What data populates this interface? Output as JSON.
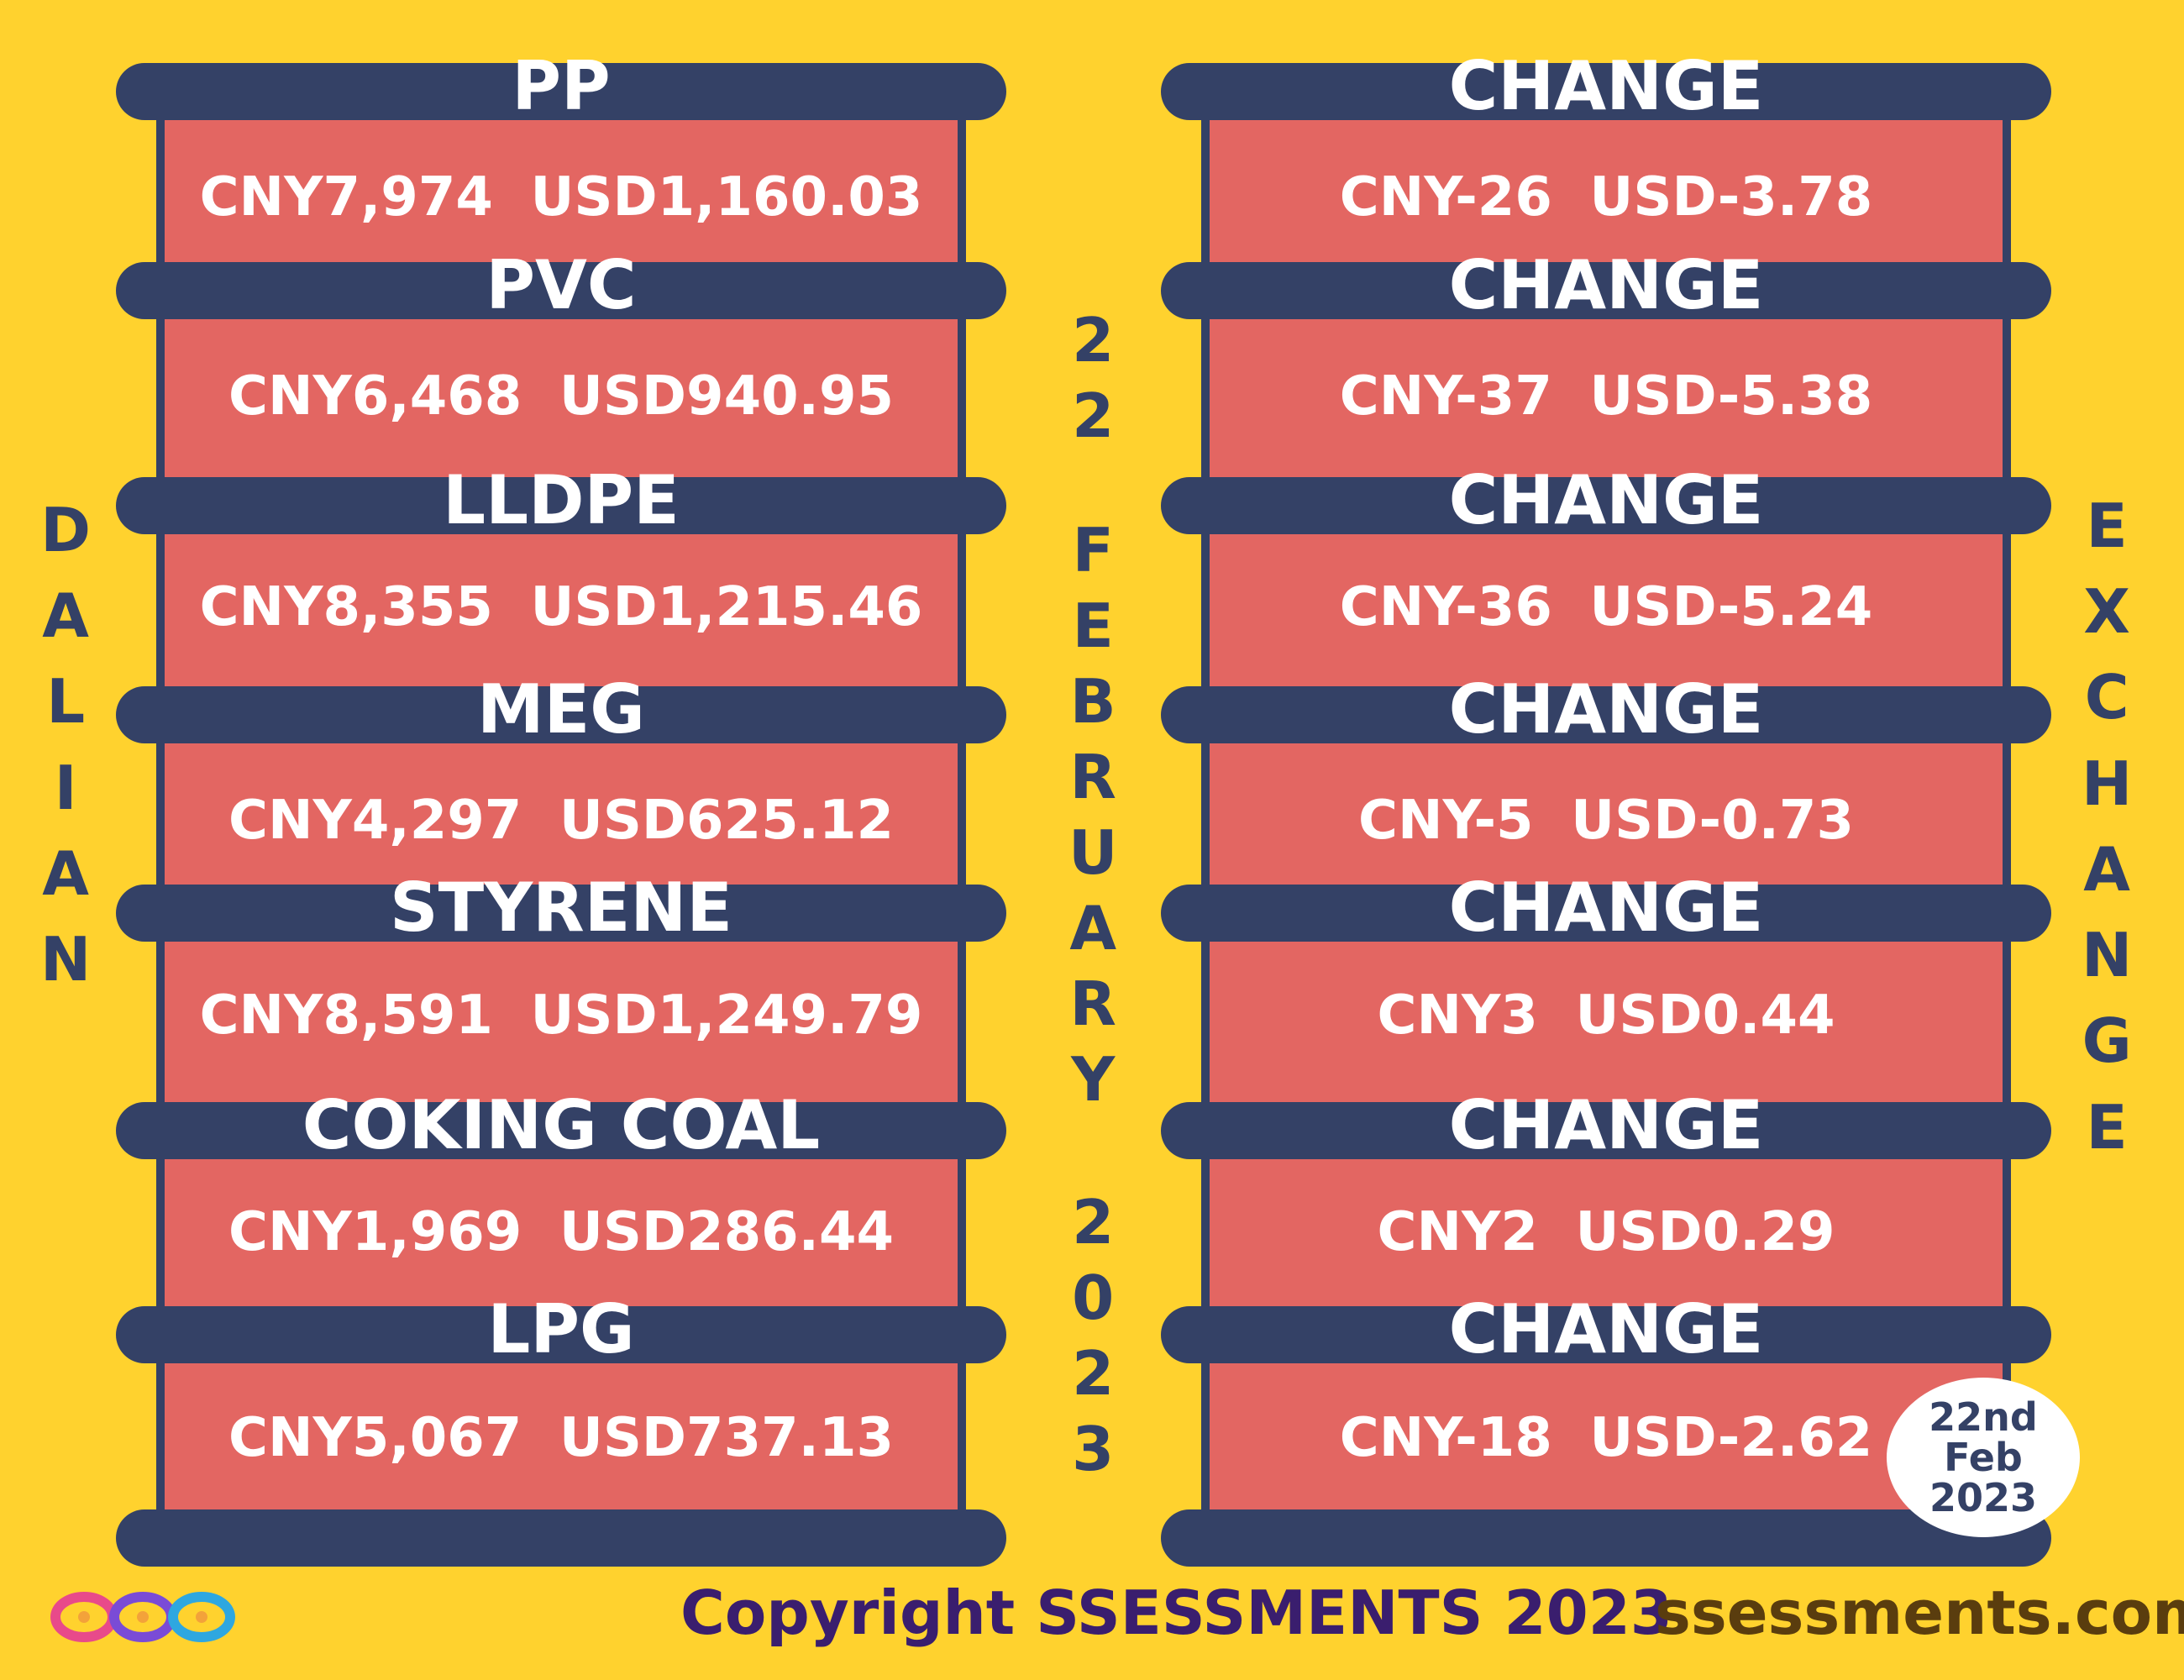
{
  "products": [
    {
      "name": "PP",
      "price": "CNY7,974  USD1,160.03",
      "change": "CNY-26  USD-3.78"
    },
    {
      "name": "PVC",
      "price": "CNY6,468  USD940.95",
      "change": "CNY-37  USD-5.38"
    },
    {
      "name": "LLDPE",
      "price": "CNY8,355  USD1,215.46",
      "change": "CNY-36  USD-5.24"
    },
    {
      "name": "MEG",
      "price": "CNY4,297  USD625.12",
      "change": "CNY-5  USD-0.73"
    },
    {
      "name": "STYRENE",
      "price": "CNY8,591  USD1,249.79",
      "change": "CNY3  USD0.44"
    },
    {
      "name": "COKING COAL",
      "price": "CNY1,969  USD286.44",
      "change": "CNY2  USD0.29"
    },
    {
      "name": "LPG",
      "price": "CNY5,067  USD737.13",
      "change": "CNY-18  USD-2.62"
    }
  ],
  "change_label": "CHANGE",
  "left_vertical": "DALIAN",
  "right_vertical": "EXCHANGE",
  "date_vertical": [
    "22",
    "FEBRUARY",
    "2023"
  ],
  "date_stamp": {
    "line1": "22nd",
    "line2": "Feb",
    "line3": "2023"
  },
  "footer": {
    "copyright": "Copyright SSESSMENTS 2023",
    "website": "ssessments.com"
  },
  "colors": {
    "background": "#FFD22E",
    "navy": "#344166",
    "red": "#E36662",
    "white": "#FFFFFF"
  },
  "logo_icon": "infinity-loops-logo-icon"
}
